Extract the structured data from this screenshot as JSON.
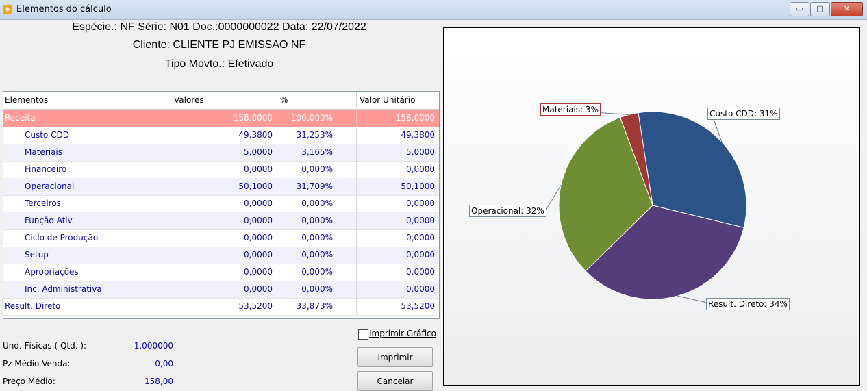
{
  "window": {
    "title": "Elementos do cálculo",
    "min_glyph": "▭",
    "max_glyph": "□",
    "close_glyph": "✕"
  },
  "header": {
    "line1": "Espécie.: NF Série: N01 Doc.:0000000022 Data: 22/07/2022",
    "line2": "Cliente: CLIENTE PJ EMISSAO NF",
    "line3": "Tipo Movto.: Efetivado"
  },
  "table": {
    "columns": [
      "Elementos",
      "Valores",
      "%",
      "Valor Unitário"
    ],
    "rows": [
      {
        "name": "Receita",
        "valor": "158,0000",
        "pct": "100,000%",
        "unit": "158,0000"
      },
      {
        "name": "Custo CDD",
        "valor": "49,3800",
        "pct": "31,253%",
        "unit": "49,3800"
      },
      {
        "name": "Materiais",
        "valor": "5,0000",
        "pct": "3,165%",
        "unit": "5,0000"
      },
      {
        "name": "Financeiro",
        "valor": "0,0000",
        "pct": "0,000%",
        "unit": "0,0000"
      },
      {
        "name": "Operacional",
        "valor": "50,1000",
        "pct": "31,709%",
        "unit": "50,1000"
      },
      {
        "name": "Terceiros",
        "valor": "0,0000",
        "pct": "0,000%",
        "unit": "0,0000"
      },
      {
        "name": "Função Ativ.",
        "valor": "0,0000",
        "pct": "0,000%",
        "unit": "0,0000"
      },
      {
        "name": "Ciclo de Produção",
        "valor": "0,0000",
        "pct": "0,000%",
        "unit": "0,0000"
      },
      {
        "name": "Setup",
        "valor": "0,0000",
        "pct": "0,000%",
        "unit": "0,0000"
      },
      {
        "name": "Apropriações",
        "valor": "0,0000",
        "pct": "0,000%",
        "unit": "0,0000"
      },
      {
        "name": "Inc. Administrativa",
        "valor": "0,0000",
        "pct": "0,000%",
        "unit": "0,0000"
      },
      {
        "name": "Result. Direto",
        "valor": "53,5200",
        "pct": "33,873%",
        "unit": "53,5200"
      }
    ]
  },
  "summary": {
    "und_label": "Und. Físicas ( Qtd. ):",
    "und_value": "1,000000",
    "pz_label": "Pz Médio Venda:",
    "pz_value": "0,00",
    "preco_label": "Preço Médio:",
    "preco_value": "158,00"
  },
  "controls": {
    "print_chart_label": "Imprimir Gráfico",
    "print_button": "Imprimir",
    "cancel_button": "Cancelar"
  },
  "colors": {
    "receita_row": "#ff9a97",
    "link_blue": "#0a0aa0"
  },
  "chart_data": {
    "type": "pie",
    "slices": [
      {
        "label": "Custo CDD: 31%",
        "value": 31.253,
        "color": "#2b5388"
      },
      {
        "label": "Result. Direto: 34%",
        "value": 33.873,
        "color": "#553c7a"
      },
      {
        "label": "Operacional: 32%",
        "value": 31.709,
        "color": "#6f8d33"
      },
      {
        "label": "Materiais: 3%",
        "value": 3.165,
        "color": "#a13a36"
      }
    ]
  }
}
